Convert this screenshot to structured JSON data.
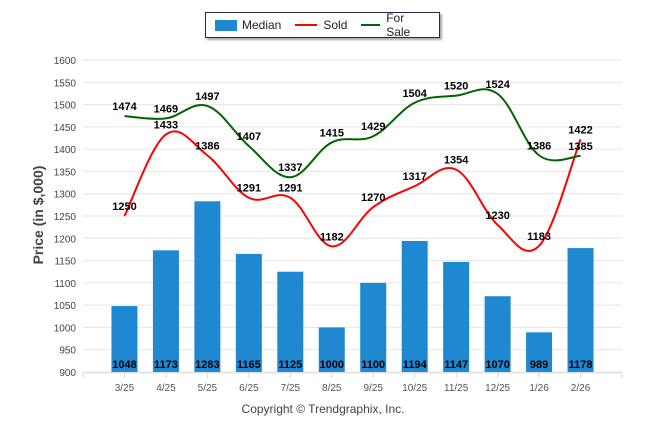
{
  "chart_data": {
    "type": "bar",
    "title": "",
    "xlabel": "",
    "ylabel": "Price (in $,000)",
    "ylim": [
      900,
      1600
    ],
    "yticks": [
      900,
      950,
      1000,
      1050,
      1100,
      1150,
      1200,
      1250,
      1300,
      1350,
      1400,
      1450,
      1500,
      1550,
      1600
    ],
    "grid": true,
    "legend_position": "top-center",
    "categories": [
      "3/25",
      "4/25",
      "5/25",
      "6/25",
      "7/25",
      "8/25",
      "9/25",
      "10/25",
      "11/25",
      "12/25",
      "1/26",
      "2/26"
    ],
    "series": [
      {
        "name": "Median",
        "type": "bar",
        "color": "#1e88d0",
        "values": [
          1048,
          1173,
          1283,
          1165,
          1125,
          1000,
          1100,
          1194,
          1147,
          1070,
          989,
          1178
        ]
      },
      {
        "name": "Sold",
        "type": "line",
        "color": "#ff0000",
        "values": [
          1250,
          1433,
          1386,
          1291,
          1291,
          1182,
          1270,
          1317,
          1354,
          1230,
          1183,
          1422
        ]
      },
      {
        "name": "For Sale",
        "type": "line",
        "color": "#006400",
        "values": [
          1474,
          1469,
          1497,
          1407,
          1337,
          1415,
          1429,
          1504,
          1520,
          1524,
          1386,
          1385
        ]
      }
    ]
  },
  "legend": {
    "median": "Median",
    "sold": "Sold",
    "for_sale": "For Sale"
  },
  "footer": {
    "copyright": "Copyright © Trendgraphix, Inc."
  }
}
